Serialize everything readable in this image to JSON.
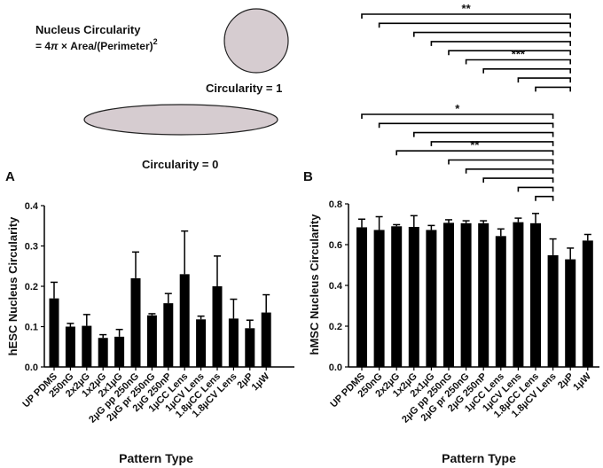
{
  "diagram": {
    "formula_title": "Nucleus Circularity",
    "formula_prefix": "= 4",
    "formula_pi": "π",
    "formula_suffix": " × Area/(Perimeter)",
    "formula_exponent": "2",
    "circle_label": "Circularity = 1",
    "ellipse_label": "Circularity = 0",
    "shape_fill": "#d6ccd0"
  },
  "chart_data": [
    {
      "type": "bar",
      "panel": "A",
      "ylabel": "hESC Nucleus Circularity",
      "xlabel": "Pattern Type",
      "ylim": [
        0,
        0.4
      ],
      "yticks": [
        "0.0",
        "0.1",
        "0.2",
        "0.3",
        "0.4"
      ],
      "bar_color": "#000000",
      "categories": [
        "UP PDMS",
        "250nG",
        "2x2µG",
        "1x2µG",
        "2x1µG",
        "2µG pp 250nG",
        "2µG pr 250nG",
        "2µG 250nP",
        "1µCC Lens",
        "1µCV Lens",
        "1.8µCC Lens",
        "1.8µCV Lens",
        "2µP",
        "1µW"
      ],
      "values": [
        0.17,
        0.1,
        0.102,
        0.072,
        0.075,
        0.22,
        0.128,
        0.158,
        0.23,
        0.118,
        0.2,
        0.12,
        0.096,
        0.135
      ],
      "errors": [
        0.04,
        0.008,
        0.028,
        0.008,
        0.018,
        0.065,
        0.004,
        0.024,
        0.107,
        0.008,
        0.075,
        0.048,
        0.02,
        0.044
      ],
      "significance": []
    },
    {
      "type": "bar",
      "panel": "B",
      "ylabel": "hMSC Nucleus Circularity",
      "xlabel": "Pattern Type",
      "ylim": [
        0,
        0.8
      ],
      "yticks": [
        "0.0",
        "0.2",
        "0.4",
        "0.6",
        "0.8"
      ],
      "bar_color": "#000000",
      "categories": [
        "UP PDMS",
        "250nG",
        "2x2µG",
        "1x2µG",
        "2x1µG",
        "2µG pp 250nG",
        "2µG pr 250nG",
        "2µG 250nP",
        "1µCC Lens",
        "1µCV Lens",
        "1.8µCC Lens",
        "1.8µCV Lens",
        "2µP",
        "1µW"
      ],
      "values": [
        0.685,
        0.672,
        0.69,
        0.687,
        0.672,
        0.707,
        0.705,
        0.705,
        0.642,
        0.71,
        0.705,
        0.548,
        0.528,
        0.62
      ],
      "errors": [
        0.04,
        0.065,
        0.008,
        0.055,
        0.022,
        0.015,
        0.012,
        0.012,
        0.035,
        0.02,
        0.048,
        0.08,
        0.055,
        0.03
      ],
      "significance": [
        {
          "from": "UP PDMS",
          "to": "2µP",
          "label": "**"
        },
        {
          "from": "250nG",
          "to": "2µP",
          "label": ""
        },
        {
          "from": "1x2µG",
          "to": "2µP",
          "label": ""
        },
        {
          "from": "2x1µG",
          "to": "2µP",
          "label": ""
        },
        {
          "from": "2µG pp 250nG",
          "to": "2µP",
          "label": ""
        },
        {
          "from": "2µG pr 250nG",
          "to": "2µP",
          "label": "***"
        },
        {
          "from": "2µG 250nP",
          "to": "2µP",
          "label": ""
        },
        {
          "from": "1µCV Lens",
          "to": "2µP",
          "label": ""
        },
        {
          "from": "1.8µCC Lens",
          "to": "2µP",
          "label": ""
        },
        {
          "from": "UP PDMS",
          "to": "1.8µCV Lens",
          "label": "*"
        },
        {
          "from": "250nG",
          "to": "1.8µCV Lens",
          "label": ""
        },
        {
          "from": "1x2µG",
          "to": "1.8µCV Lens",
          "label": ""
        },
        {
          "from": "2x1µG",
          "to": "1.8µCV Lens",
          "label": ""
        },
        {
          "from": "2x2µG",
          "to": "1.8µCV Lens",
          "label": "**"
        },
        {
          "from": "2µG pp 250nG",
          "to": "1.8µCV Lens",
          "label": ""
        },
        {
          "from": "2µG pr 250nG",
          "to": "1.8µCV Lens",
          "label": ""
        },
        {
          "from": "2µG 250nP",
          "to": "1.8µCV Lens",
          "label": ""
        },
        {
          "from": "1µCV Lens",
          "to": "1.8µCV Lens",
          "label": ""
        },
        {
          "from": "1.8µCC Lens",
          "to": "1.8µCV Lens",
          "label": ""
        }
      ]
    }
  ]
}
